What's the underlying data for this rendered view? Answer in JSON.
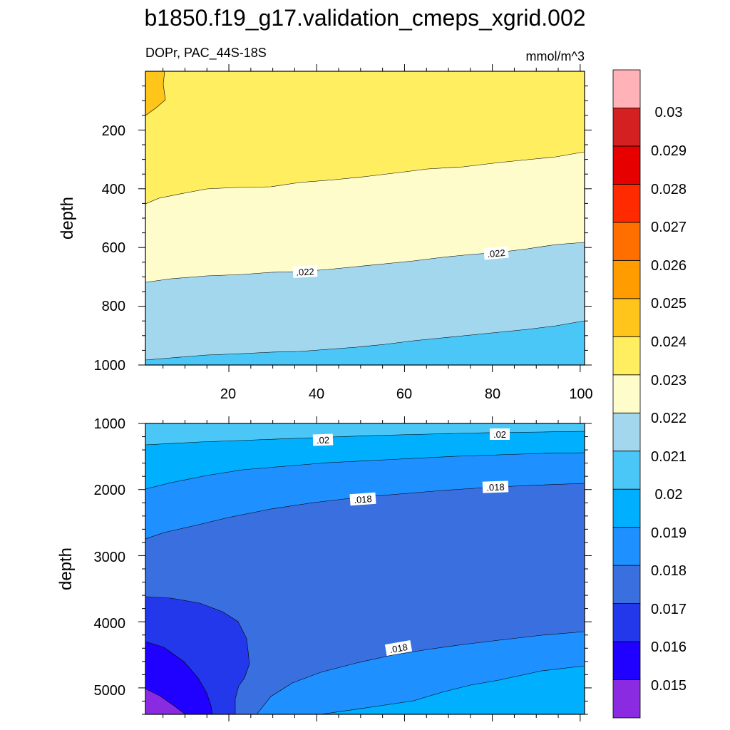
{
  "chart_data": {
    "type": "contour",
    "title": "b1850.f19_g17.validation_cmeps_xgrid.002",
    "subtitle_left": "DOPr, PAC_44S-18S",
    "units": "mmol/m^3",
    "colorbar": {
      "levels": [
        "0.015",
        "0.016",
        "0.017",
        "0.018",
        "0.019",
        "0.02",
        "0.021",
        "0.022",
        "0.023",
        "0.024",
        "0.025",
        "0.026",
        "0.027",
        "0.028",
        "0.029",
        "0.03"
      ],
      "colors": [
        "#8a2be2",
        "#2000ff",
        "#2338eb",
        "#3a6fe0",
        "#1f90ff",
        "#00b0ff",
        "#4ac6f7",
        "#a3d7ee",
        "#fffccc",
        "#ffee60",
        "#ffc51a",
        "#ff9d00",
        "#ff6f00",
        "#ff2a00",
        "#e60000",
        "#d42020",
        "#ffb3b8"
      ]
    },
    "panels": [
      {
        "name": "upper",
        "ylabel": "depth",
        "xlim": [
          1,
          101
        ],
        "ylim": [
          0,
          1000
        ],
        "yticks": [
          200,
          400,
          600,
          800,
          1000
        ],
        "xticks": [
          20,
          40,
          60,
          80,
          100
        ],
        "contour_labels": [
          {
            "text": ".022",
            "x": 36,
            "y": 680
          },
          {
            "text": ".022",
            "x": 80,
            "y": 620
          }
        ]
      },
      {
        "name": "lower",
        "ylabel": "depth",
        "xlim": [
          1,
          101
        ],
        "ylim": [
          1000,
          5400
        ],
        "yticks": [
          1000,
          2000,
          3000,
          4000,
          5000
        ],
        "contour_labels": [
          {
            "text": ".02",
            "x": 41,
            "y": 1240
          },
          {
            "text": ".02",
            "x": 81,
            "y": 1170
          },
          {
            "text": ".018",
            "x": 50,
            "y": 2150
          },
          {
            "text": ".018",
            "x": 81,
            "y": 1970
          },
          {
            "text": ".018",
            "x": 59,
            "y": 4380
          }
        ]
      }
    ]
  }
}
